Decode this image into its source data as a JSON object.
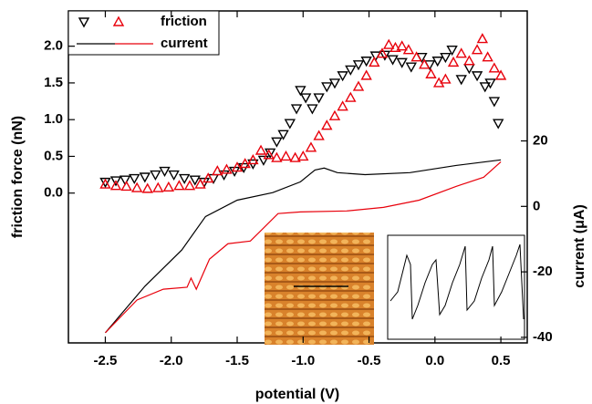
{
  "chart_data": {
    "type": "scatter-line",
    "x_label": "potential (V)",
    "y_label": "friction force (nN)",
    "y2_label": "current (μA)",
    "xlim": [
      -2.78,
      0.7
    ],
    "ylim": [
      -2.04,
      2.48
    ],
    "y2lim": [
      -41.7,
      59.7
    ],
    "xticks": [
      {
        "value": -2.5,
        "label": "-2.5"
      },
      {
        "value": -2,
        "label": "-2.0"
      },
      {
        "value": -1.5,
        "label": "-1.5"
      },
      {
        "value": -1,
        "label": "-1.0"
      },
      {
        "value": -0.5,
        "label": "-0.5"
      },
      {
        "value": 0,
        "label": "0.0"
      },
      0.5
    ],
    "yticks": [
      {
        "value": 0,
        "label": "0.0"
      },
      0.5,
      {
        "value": 1,
        "label": "1.0"
      },
      1.5,
      {
        "value": 2,
        "label": "2.0"
      }
    ],
    "y2ticks": [
      -40,
      -20,
      0,
      20
    ],
    "legend": "upper left",
    "series": [
      {
        "name": "friction",
        "color": "#000000",
        "marker": "down",
        "x": [
          -2.5,
          -2.42,
          -2.35,
          -2.28,
          -2.2,
          -2.12,
          -2.05,
          -1.98,
          -1.9,
          -1.82,
          -1.75,
          -1.68,
          -1.6,
          -1.52,
          -1.45,
          -1.38,
          -1.3,
          -1.25,
          -1.2,
          -1.15,
          -1.1,
          -1.05,
          -1.02,
          -0.98,
          -0.93,
          -0.88,
          -0.82,
          -0.76,
          -0.7,
          -0.64,
          -0.58,
          -0.52,
          -0.45,
          -0.38,
          -0.32,
          -0.25,
          -0.18,
          -0.1,
          -0.04,
          0.02,
          0.08,
          0.13,
          0.2,
          0.26,
          0.32,
          0.38,
          0.42,
          0.45,
          0.48
        ],
        "values": [
          0.15,
          0.17,
          0.18,
          0.2,
          0.22,
          0.25,
          0.3,
          0.25,
          0.2,
          0.18,
          0.15,
          0.2,
          0.25,
          0.3,
          0.35,
          0.4,
          0.45,
          0.55,
          0.7,
          0.8,
          0.95,
          1.15,
          1.4,
          1.3,
          1.15,
          1.3,
          1.45,
          1.5,
          1.6,
          1.68,
          1.75,
          1.8,
          1.87,
          1.88,
          1.82,
          1.78,
          1.72,
          1.85,
          1.75,
          1.8,
          1.85,
          1.95,
          1.55,
          1.7,
          1.6,
          1.45,
          1.5,
          1.25,
          0.95
        ]
      },
      {
        "color": "#e8000b",
        "marker": "up",
        "x": [
          -2.5,
          -2.42,
          -2.34,
          -2.26,
          -2.18,
          -2.1,
          -2.02,
          -1.94,
          -1.86,
          -1.78,
          -1.72,
          -1.65,
          -1.58,
          -1.5,
          -1.44,
          -1.38,
          -1.32,
          -1.26,
          -1.2,
          -1.13,
          -1.06,
          -1.0,
          -0.94,
          -0.88,
          -0.82,
          -0.76,
          -0.7,
          -0.64,
          -0.58,
          -0.52,
          -0.46,
          -0.4,
          -0.35,
          -0.3,
          -0.25,
          -0.2,
          -0.14,
          -0.08,
          -0.03,
          0.03,
          0.08,
          0.14,
          0.2,
          0.26,
          0.32,
          0.36,
          0.4,
          0.45,
          0.5
        ],
        "values": [
          0.12,
          0.1,
          0.09,
          0.07,
          0.06,
          0.07,
          0.08,
          0.1,
          0.1,
          0.12,
          0.2,
          0.3,
          0.32,
          0.35,
          0.4,
          0.45,
          0.58,
          0.52,
          0.48,
          0.5,
          0.48,
          0.5,
          0.62,
          0.78,
          0.92,
          1.05,
          1.18,
          1.3,
          1.45,
          1.6,
          1.78,
          1.9,
          2.02,
          1.98,
          2.0,
          1.95,
          1.85,
          1.75,
          1.62,
          1.5,
          1.55,
          1.78,
          1.9,
          1.8,
          1.95,
          2.1,
          1.85,
          1.7,
          1.6
        ]
      },
      {
        "name": "current",
        "color": "#000000",
        "axis": "y2",
        "x": [
          -2.5,
          -2.2,
          -1.92,
          -1.74,
          -1.5,
          -1.23,
          -1.02,
          -0.91,
          -0.84,
          -0.74,
          -0.53,
          -0.19,
          0.16,
          0.5
        ],
        "values": [
          -38.6,
          -24.4,
          -13.3,
          -3.1,
          1.9,
          4.2,
          7.5,
          11.1,
          11.7,
          10.3,
          9.7,
          10.3,
          12.5,
          14.2
        ]
      },
      {
        "color": "#e8000b",
        "axis": "y2",
        "x": [
          -2.5,
          -2.26,
          -2.06,
          -1.88,
          -1.85,
          -1.81,
          -1.71,
          -1.57,
          -1.4,
          -1.19,
          -1.02,
          -0.67,
          -0.39,
          -0.12,
          0.16,
          0.37,
          0.5
        ],
        "values": [
          -38.6,
          -28.6,
          -25.3,
          -24.7,
          -21.9,
          -25.3,
          -16.1,
          -11.4,
          -10.6,
          -2.2,
          -1.7,
          -1.4,
          -0.3,
          1.9,
          6.1,
          8.9,
          13.6
        ]
      }
    ]
  }
}
